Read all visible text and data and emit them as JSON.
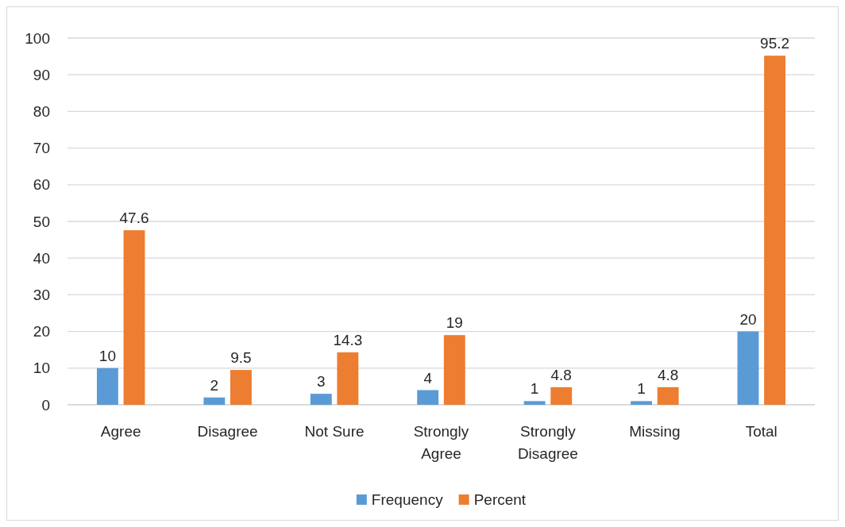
{
  "chart_data": {
    "type": "bar",
    "categories": [
      "Agree",
      "Disagree",
      "Not Sure",
      "Strongly Agree",
      "Strongly Disagree",
      "Missing",
      "Total"
    ],
    "series": [
      {
        "name": "Frequency",
        "color": "#5b9bd5",
        "values": [
          10,
          2,
          3,
          4,
          1,
          1,
          20
        ]
      },
      {
        "name": "Percent",
        "color": "#ed7d31",
        "values": [
          47.6,
          9.5,
          14.3,
          19,
          4.8,
          4.8,
          95.2
        ]
      }
    ],
    "ylim": [
      0,
      100
    ],
    "yticks": [
      0,
      10,
      20,
      30,
      40,
      50,
      60,
      70,
      80,
      90,
      100
    ],
    "grid": "y",
    "legend": "bottom",
    "data_labels": true
  }
}
